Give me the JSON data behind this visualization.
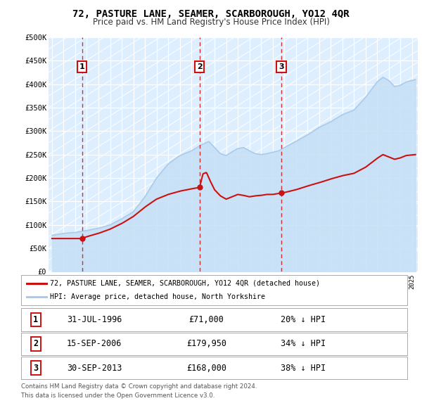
{
  "title": "72, PASTURE LANE, SEAMER, SCARBOROUGH, YO12 4QR",
  "subtitle": "Price paid vs. HM Land Registry's House Price Index (HPI)",
  "title_fontsize": 10,
  "subtitle_fontsize": 8.5,
  "bg_color": "#ffffff",
  "plot_bg_color": "#ddeeff",
  "hpi_color": "#aaccea",
  "hpi_fill_color": "#c5dff5",
  "price_color": "#cc1111",
  "hatch_color": "#c0cfe0",
  "xlim": [
    1993.7,
    2025.5
  ],
  "ylim": [
    0,
    500000
  ],
  "ytick_labels": [
    "£0",
    "£50K",
    "£100K",
    "£150K",
    "£200K",
    "£250K",
    "£300K",
    "£350K",
    "£400K",
    "£450K",
    "£500K"
  ],
  "ytick_values": [
    0,
    50000,
    100000,
    150000,
    200000,
    250000,
    300000,
    350000,
    400000,
    450000,
    500000
  ],
  "sales": [
    {
      "label": 1,
      "date_decimal": 1996.58,
      "price": 71000,
      "date_str": "31-JUL-1996",
      "price_str": "£71,000",
      "hpi_pct": "20% ↓ HPI"
    },
    {
      "label": 2,
      "date_decimal": 2006.71,
      "price": 179950,
      "date_str": "15-SEP-2006",
      "price_str": "£179,950",
      "hpi_pct": "34% ↓ HPI"
    },
    {
      "label": 3,
      "date_decimal": 2013.75,
      "price": 168000,
      "date_str": "30-SEP-2013",
      "price_str": "£168,000",
      "hpi_pct": "38% ↓ HPI"
    }
  ],
  "legend_entry1": "72, PASTURE LANE, SEAMER, SCARBOROUGH, YO12 4QR (detached house)",
  "legend_entry2": "HPI: Average price, detached house, North Yorkshire",
  "footer1": "Contains HM Land Registry data © Crown copyright and database right 2024.",
  "footer2": "This data is licensed under the Open Government Licence v3.0."
}
